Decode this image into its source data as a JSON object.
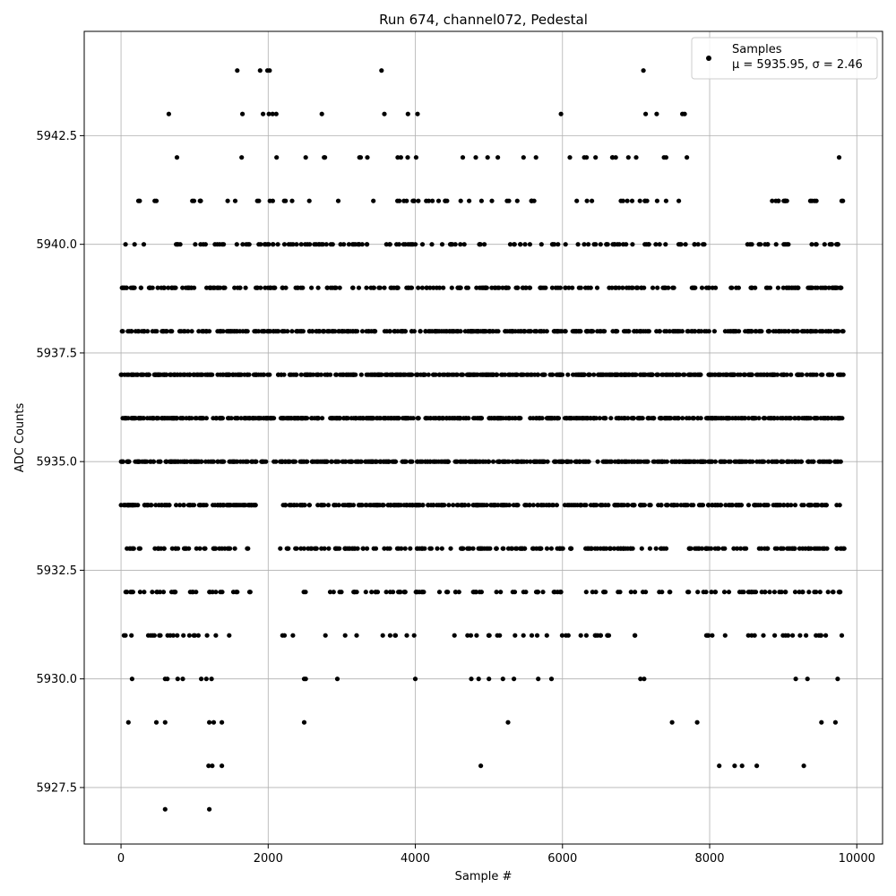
{
  "chart_data": {
    "type": "scatter",
    "title": "Run 674, channel072, Pedestal",
    "xlabel": "Sample #",
    "ylabel": "ADC Counts",
    "xlim": [
      -500,
      10350
    ],
    "ylim": [
      5926.2,
      5944.9
    ],
    "x_ticks": [
      0,
      2000,
      4000,
      6000,
      8000,
      10000
    ],
    "x_tick_labels": [
      "0",
      "2000",
      "4000",
      "6000",
      "8000",
      "10000"
    ],
    "y_ticks": [
      5927.5,
      5930.0,
      5932.5,
      5935.0,
      5937.5,
      5940.0,
      5942.5
    ],
    "y_tick_labels": [
      "5927.5",
      "5930.0",
      "5932.5",
      "5935.0",
      "5937.5",
      "5940.0",
      "5942.5"
    ],
    "grid": true,
    "legend_position": "top-right",
    "marker_color": "#000000",
    "series": [
      {
        "name": "Samples",
        "stat_label": "μ = 5935.95, σ = 2.46",
        "mean": 5935.95,
        "sigma": 2.46,
        "x_range": [
          0,
          9830
        ],
        "y_levels": [
          5927,
          5928,
          5929,
          5930,
          5931,
          5932,
          5933,
          5934,
          5935,
          5936,
          5937,
          5938,
          5939,
          5940,
          5941,
          5942,
          5943,
          5944
        ],
        "points": [
          [
            1580,
            5944
          ],
          [
            1890,
            5944
          ],
          [
            1990,
            5944
          ],
          [
            2020,
            5944
          ],
          [
            3540,
            5944
          ],
          [
            7100,
            5944
          ],
          [
            650,
            5943
          ],
          [
            1650,
            5943
          ],
          [
            1930,
            5943
          ],
          [
            2010,
            5943
          ],
          [
            2060,
            5943
          ],
          [
            2110,
            5943
          ],
          [
            2730,
            5943
          ],
          [
            3580,
            5943
          ],
          [
            3900,
            5943
          ],
          [
            4030,
            5943
          ],
          [
            5980,
            5943
          ],
          [
            7130,
            5943
          ],
          [
            7280,
            5943
          ],
          [
            7630,
            5943
          ],
          [
            7660,
            5943
          ],
          [
            760,
            5942
          ],
          [
            1640,
            5942
          ],
          [
            2510,
            5942
          ],
          [
            4010,
            5942
          ],
          [
            5470,
            5942
          ],
          [
            6100,
            5942
          ],
          [
            6450,
            5942
          ],
          [
            7380,
            5942
          ],
          [
            7690,
            5942
          ],
          [
            9760,
            5942
          ],
          [
            970,
            5941
          ],
          [
            1080,
            5941
          ],
          [
            1450,
            5941
          ],
          [
            8850,
            5941
          ],
          [
            9030,
            5941
          ],
          [
            9390,
            5941
          ],
          [
            9450,
            5941
          ],
          [
            9810,
            5941
          ],
          [
            8550,
            5940
          ],
          [
            8690,
            5940
          ],
          [
            8790,
            5940
          ],
          [
            9070,
            5940
          ],
          [
            8080,
            5939
          ],
          [
            8290,
            5939
          ],
          [
            8560,
            5939
          ],
          [
            8250,
            5938
          ],
          [
            8130,
            5928
          ],
          [
            8340,
            5928
          ],
          [
            8440,
            5928
          ],
          [
            8640,
            5928
          ],
          [
            9280,
            5928
          ],
          [
            4890,
            5928
          ],
          [
            1190,
            5928
          ],
          [
            1240,
            5928
          ],
          [
            1370,
            5928
          ],
          [
            600,
            5927
          ],
          [
            1200,
            5927
          ],
          [
            100,
            5929
          ],
          [
            480,
            5929
          ],
          [
            600,
            5929
          ],
          [
            1200,
            5929
          ],
          [
            1260,
            5929
          ],
          [
            1370,
            5929
          ],
          [
            2490,
            5929
          ],
          [
            5260,
            5929
          ],
          [
            7490,
            5929
          ],
          [
            7830,
            5929
          ],
          [
            9520,
            5929
          ],
          [
            9710,
            5929
          ],
          [
            150,
            5930
          ],
          [
            600,
            5930
          ],
          [
            630,
            5930
          ],
          [
            770,
            5930
          ],
          [
            840,
            5930
          ],
          [
            1090,
            5930
          ],
          [
            1160,
            5930
          ],
          [
            1230,
            5930
          ],
          [
            2490,
            5930
          ],
          [
            2510,
            5930
          ],
          [
            2940,
            5930
          ],
          [
            4000,
            5930
          ],
          [
            4760,
            5930
          ],
          [
            4860,
            5930
          ],
          [
            5000,
            5930
          ],
          [
            5190,
            5930
          ],
          [
            5340,
            5930
          ],
          [
            5670,
            5930
          ],
          [
            5850,
            5930
          ],
          [
            7060,
            5930
          ],
          [
            7110,
            5930
          ],
          [
            9170,
            5930
          ],
          [
            9330,
            5930
          ],
          [
            9740,
            5930
          ]
        ]
      }
    ]
  }
}
